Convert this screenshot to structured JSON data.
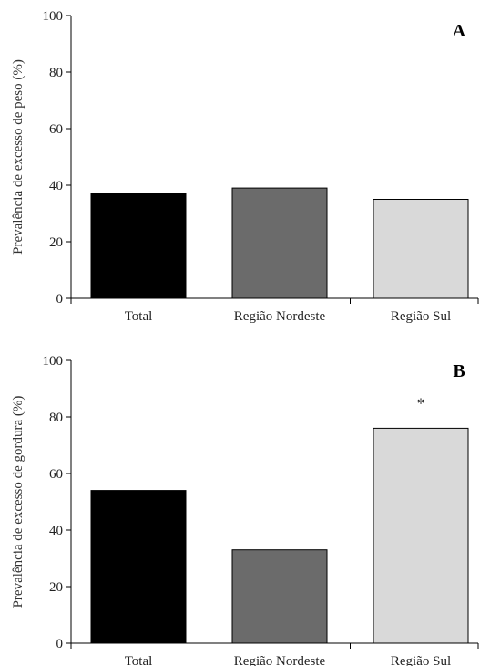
{
  "chart_data": [
    {
      "type": "bar",
      "panel": "A",
      "categories": [
        "Total",
        "Região Nordeste",
        "Região Sul"
      ],
      "values": [
        37,
        39,
        35
      ],
      "colors": [
        "#000000",
        "#6b6b6b",
        "#d9d9d9"
      ],
      "ylabel": "Prevalência de excesso de peso (%)",
      "xlabel": "",
      "ylim": [
        0,
        100
      ],
      "yticks": [
        0,
        20,
        40,
        60,
        80,
        100
      ],
      "annotations": []
    },
    {
      "type": "bar",
      "panel": "B",
      "categories": [
        "Total",
        "Região Nordeste",
        "Região Sul"
      ],
      "values": [
        54,
        33,
        76
      ],
      "colors": [
        "#000000",
        "#6b6b6b",
        "#d9d9d9"
      ],
      "ylabel": "Prevalência de excesso de gordura (%)",
      "xlabel": "",
      "ylim": [
        0,
        100
      ],
      "yticks": [
        0,
        20,
        40,
        60,
        80,
        100
      ],
      "annotations": [
        {
          "category": "Região Sul",
          "text": "*"
        }
      ]
    }
  ]
}
